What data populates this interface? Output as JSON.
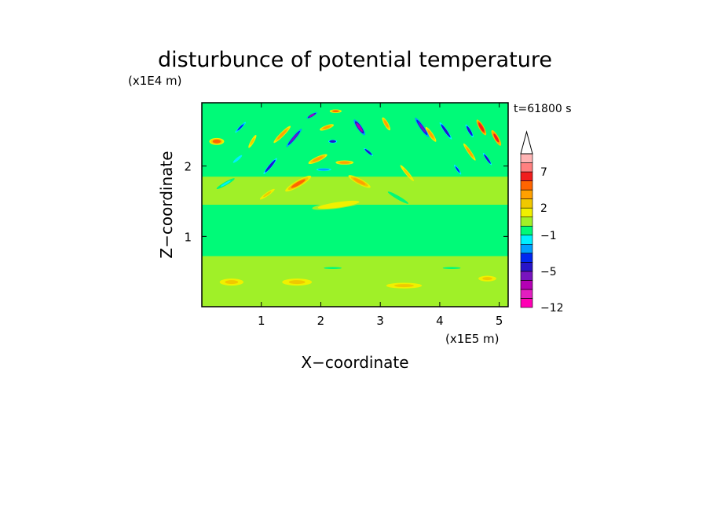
{
  "chart_data": {
    "type": "heatmap",
    "title": "disturbunce of potential temperature",
    "xlabel": "X−coordinate",
    "ylabel": "Z−coordinate",
    "x_unit": "(x1E5 m)",
    "y_unit": "(x1E4 m)",
    "time_label": "t=61800 s",
    "xlim": [
      0,
      5.15
    ],
    "ylim": [
      0,
      2.9
    ],
    "x_ticks": [
      {
        "value": 1,
        "label": "1"
      },
      {
        "value": 2,
        "label": "2"
      },
      {
        "value": 3,
        "label": "3"
      },
      {
        "value": 4,
        "label": "4"
      },
      {
        "value": 5,
        "label": "5"
      }
    ],
    "y_ticks": [
      {
        "value": 1,
        "label": "1"
      },
      {
        "value": 2,
        "label": "2"
      }
    ],
    "colorbar": {
      "levels": [
        -12,
        -10,
        -8,
        -6,
        -5,
        -4,
        -3,
        -2,
        -1,
        0,
        1,
        2,
        3,
        4,
        5,
        7,
        9,
        11
      ],
      "labeled": [
        {
          "value": 7,
          "label": "7"
        },
        {
          "value": 2,
          "label": "2"
        },
        {
          "value": -1,
          "label": "−1"
        },
        {
          "value": -5,
          "label": "−5"
        },
        {
          "value": -12,
          "label": "−12"
        }
      ],
      "colors": [
        "#ff00b4",
        "#e21ec0",
        "#b400b4",
        "#7814be",
        "#2814c8",
        "#0028f0",
        "#00a0ff",
        "#00f0ff",
        "#00fa78",
        "#a0f028",
        "#f0f000",
        "#f0c800",
        "#ffa000",
        "#ff6400",
        "#f01e1e",
        "#ff8080",
        "#ffb4b4"
      ],
      "extend": "max"
    },
    "background_bands": [
      {
        "z": [
          0.0,
          0.72
        ],
        "value": 0.5
      },
      {
        "z": [
          0.72,
          0.85
        ],
        "value": -0.3
      },
      {
        "z": [
          0.85,
          1.2
        ],
        "value": -0.8
      },
      {
        "z": [
          1.2,
          1.45
        ],
        "value": -0.3
      },
      {
        "z": [
          1.45,
          1.85
        ],
        "value": 0.3
      },
      {
        "z": [
          1.85,
          2.9
        ],
        "value": -0.2
      }
    ],
    "features": [
      {
        "x": 1.62,
        "z": 1.75,
        "value": 4.0,
        "length": 0.5,
        "width": 0.09,
        "angle": -30
      },
      {
        "x": 2.65,
        "z": 1.78,
        "value": 3.5,
        "length": 0.42,
        "width": 0.08,
        "angle": 28
      },
      {
        "x": 2.3,
        "z": 1.45,
        "value": 1.5,
        "length": 0.9,
        "width": 0.1,
        "angle": -8
      },
      {
        "x": 1.95,
        "z": 2.1,
        "value": 3.0,
        "length": 0.35,
        "width": 0.07,
        "angle": -25
      },
      {
        "x": 2.4,
        "z": 2.05,
        "value": 3.0,
        "length": 0.3,
        "width": 0.06,
        "angle": 0
      },
      {
        "x": 2.1,
        "z": 2.55,
        "value": 3.5,
        "length": 0.25,
        "width": 0.06,
        "angle": -20
      },
      {
        "x": 2.25,
        "z": 2.78,
        "value": 4.0,
        "length": 0.2,
        "width": 0.05,
        "angle": 0
      },
      {
        "x": 1.35,
        "z": 2.45,
        "value": 3.0,
        "length": 0.4,
        "width": 0.06,
        "angle": -45
      },
      {
        "x": 0.85,
        "z": 2.35,
        "value": 2.5,
        "length": 0.25,
        "width": 0.05,
        "angle": -60
      },
      {
        "x": 0.25,
        "z": 2.35,
        "value": 4.0,
        "length": 0.25,
        "width": 0.1,
        "angle": 0
      },
      {
        "x": 3.1,
        "z": 2.6,
        "value": 3.0,
        "length": 0.25,
        "width": 0.06,
        "angle": 60
      },
      {
        "x": 3.85,
        "z": 2.45,
        "value": 3.0,
        "length": 0.3,
        "width": 0.06,
        "angle": 55
      },
      {
        "x": 4.7,
        "z": 2.55,
        "value": 6.5,
        "length": 0.3,
        "width": 0.07,
        "angle": 60
      },
      {
        "x": 4.95,
        "z": 2.4,
        "value": 5.0,
        "length": 0.3,
        "width": 0.07,
        "angle": 60
      },
      {
        "x": 4.5,
        "z": 2.2,
        "value": 3.0,
        "length": 0.35,
        "width": 0.05,
        "angle": 55
      },
      {
        "x": 3.45,
        "z": 1.9,
        "value": 2.5,
        "length": 0.35,
        "width": 0.05,
        "angle": 50
      },
      {
        "x": 1.15,
        "z": 2.0,
        "value": -4.5,
        "length": 0.35,
        "width": 0.05,
        "angle": -50
      },
      {
        "x": 1.55,
        "z": 2.4,
        "value": -5.5,
        "length": 0.4,
        "width": 0.05,
        "angle": -50
      },
      {
        "x": 1.85,
        "z": 2.72,
        "value": -6.5,
        "length": 0.2,
        "width": 0.04,
        "angle": -30
      },
      {
        "x": 2.2,
        "z": 2.35,
        "value": -4.5,
        "length": 0.15,
        "width": 0.05,
        "angle": 0
      },
      {
        "x": 2.05,
        "z": 1.95,
        "value": -3.0,
        "length": 0.25,
        "width": 0.04,
        "angle": 0
      },
      {
        "x": 2.65,
        "z": 2.55,
        "value": -6.5,
        "length": 0.32,
        "width": 0.07,
        "angle": 55
      },
      {
        "x": 2.8,
        "z": 2.2,
        "value": -4.5,
        "length": 0.2,
        "width": 0.04,
        "angle": 40
      },
      {
        "x": 3.7,
        "z": 2.55,
        "value": -5.5,
        "length": 0.4,
        "width": 0.06,
        "angle": 55
      },
      {
        "x": 4.1,
        "z": 2.5,
        "value": -4.5,
        "length": 0.35,
        "width": 0.05,
        "angle": 55
      },
      {
        "x": 4.5,
        "z": 2.5,
        "value": -4.5,
        "length": 0.25,
        "width": 0.05,
        "angle": 60
      },
      {
        "x": 4.8,
        "z": 2.1,
        "value": -4.5,
        "length": 0.25,
        "width": 0.04,
        "angle": 55
      },
      {
        "x": 0.65,
        "z": 2.55,
        "value": -4.0,
        "length": 0.25,
        "width": 0.04,
        "angle": -45
      },
      {
        "x": 4.3,
        "z": 1.95,
        "value": -3.5,
        "length": 0.2,
        "width": 0.04,
        "angle": 55
      },
      {
        "x": 0.4,
        "z": 1.75,
        "value": -1.2,
        "length": 0.35,
        "width": 0.05,
        "angle": -30
      },
      {
        "x": 0.6,
        "z": 2.1,
        "value": -1.5,
        "length": 0.25,
        "width": 0.05,
        "angle": -40
      },
      {
        "x": 0.5,
        "z": 0.35,
        "value": 2.5,
        "length": 0.4,
        "width": 0.1,
        "angle": 0
      },
      {
        "x": 1.6,
        "z": 0.35,
        "value": 2.5,
        "length": 0.5,
        "width": 0.1,
        "angle": 0
      },
      {
        "x": 3.4,
        "z": 0.3,
        "value": 2.5,
        "length": 0.6,
        "width": 0.08,
        "angle": 0
      },
      {
        "x": 4.8,
        "z": 0.4,
        "value": 2.5,
        "length": 0.3,
        "width": 0.08,
        "angle": 0
      },
      {
        "x": 2.2,
        "z": 0.55,
        "value": -0.3,
        "length": 0.3,
        "width": 0.03,
        "angle": 0
      },
      {
        "x": 4.2,
        "z": 0.55,
        "value": -0.3,
        "length": 0.3,
        "width": 0.03,
        "angle": 0
      },
      {
        "x": 3.3,
        "z": 1.55,
        "value": -0.3,
        "length": 0.4,
        "width": 0.05,
        "angle": 30
      },
      {
        "x": 1.1,
        "z": 1.6,
        "value": 2.5,
        "length": 0.3,
        "width": 0.05,
        "angle": -35
      }
    ]
  }
}
